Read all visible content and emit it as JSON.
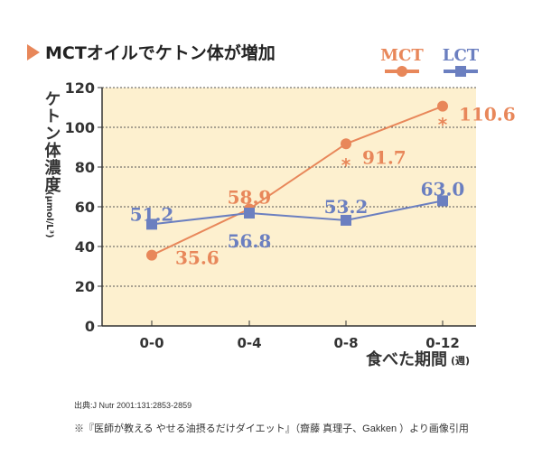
{
  "title": "MCTオイルでケトン体が増加",
  "colors": {
    "mct": "#e8875a",
    "lct": "#6b7fc0",
    "plot_bg": "#fdf0cf",
    "accent": "#e8875a"
  },
  "chart_data": {
    "type": "line",
    "categories": [
      "0-0",
      "0-4",
      "0-8",
      "0-12"
    ],
    "series": [
      {
        "name": "MCT",
        "values": [
          35.6,
          58.9,
          91.7,
          110.6
        ],
        "labels": [
          "35.6",
          "58.9",
          "91.7",
          "110.6"
        ],
        "marker": "circle"
      },
      {
        "name": "LCT",
        "values": [
          51.2,
          56.8,
          53.2,
          63.0
        ],
        "labels": [
          "51.2",
          "56.8",
          "53.2",
          "63.0"
        ],
        "marker": "square"
      }
    ],
    "significance_marks": [
      {
        "category": "0-8",
        "text": "*"
      },
      {
        "category": "0-12",
        "text": "*"
      }
    ],
    "ylabel": "ケトン体濃度",
    "ylabel_unit": "(μmol/L³)",
    "xlabel": "食べた期間",
    "xlabel_unit": "(週)",
    "ylim": [
      0,
      120
    ],
    "yticks": [
      0,
      20,
      40,
      60,
      80,
      100,
      120
    ],
    "grid": true,
    "legend": "top-right"
  },
  "source": "出典:J Nutr 2001:131:2853-2859",
  "note": "※『医師が教える やせる油摂るだけダイエット』（齋藤 真理子、Gakken ）より画像引用"
}
